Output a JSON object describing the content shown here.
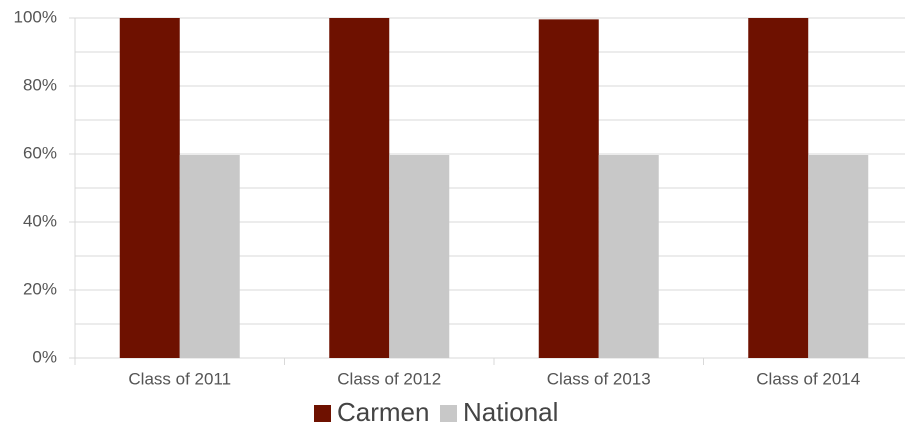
{
  "chart_data": {
    "type": "bar",
    "categories": [
      "Class of 2011",
      "Class of 2012",
      "Class of 2013",
      "Class of 2014"
    ],
    "series": [
      {
        "name": "Carmen",
        "color": "#6e1100",
        "values": [
          100,
          100,
          99.6,
          100
        ]
      },
      {
        "name": "National",
        "color": "#c8c8c8",
        "values": [
          59.7,
          59.7,
          59.7,
          59.7
        ]
      }
    ],
    "ylim": [
      0,
      100
    ],
    "yticks": [
      {
        "value": 0,
        "label": "0%"
      },
      {
        "value": 20,
        "label": "20%"
      },
      {
        "value": 40,
        "label": "40%"
      },
      {
        "value": 60,
        "label": "60%"
      },
      {
        "value": 80,
        "label": "80%"
      },
      {
        "value": 100,
        "label": "100%"
      }
    ],
    "grid_lines": [
      0,
      10,
      20,
      30,
      40,
      50,
      60,
      70,
      80,
      90,
      100
    ],
    "grid": true,
    "legend": "bottom"
  }
}
